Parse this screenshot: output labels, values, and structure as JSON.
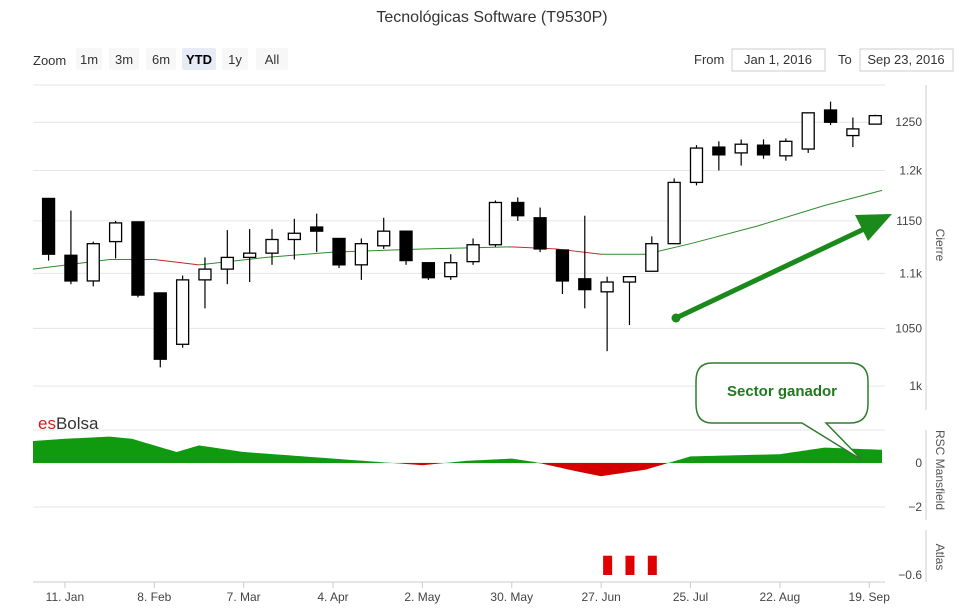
{
  "title": "Tecnológicas Software (T9530P)",
  "zoom": {
    "label": "Zoom",
    "buttons": [
      "1m",
      "3m",
      "6m",
      "YTD",
      "1y",
      "All"
    ],
    "selected": "YTD"
  },
  "range": {
    "from_label": "From",
    "from_value": "Jan 1, 2016",
    "to_label": "To",
    "to_value": "Sep 23, 2016"
  },
  "watermark": {
    "prefix": "es",
    "suffix": "Bolsa"
  },
  "annotation": {
    "text": "Sector ganador"
  },
  "colors": {
    "up_fill": "#ffffff",
    "down_fill": "#000000",
    "ma_up": "#2e8b2e",
    "ma_down": "#cc2222",
    "rsc_pos": "#0f9a0f",
    "rsc_neg": "#d40000",
    "arrow": "#1a8a1a",
    "atlas": "#e00000"
  },
  "chart_data": [
    {
      "type": "candlestick",
      "title": "Tecnológicas Software (T9530P)",
      "ylabel": "Cierre",
      "y_scale": "log",
      "ylim": [
        980,
        1290
      ],
      "y_ticks": [
        1000,
        1050,
        1100,
        1150,
        1200,
        1250
      ],
      "y_tick_labels": [
        "1k",
        "1050",
        "1.1k",
        "1150",
        "1.2k",
        "1250"
      ],
      "x_range": [
        "2016-01-01",
        "2016-09-23"
      ],
      "x_ticks": [
        "2016-01-11",
        "2016-02-08",
        "2016-03-07",
        "2016-04-04",
        "2016-05-02",
        "2016-05-30",
        "2016-06-27",
        "2016-07-25",
        "2016-08-22",
        "2016-09-19"
      ],
      "x_tick_labels": [
        "11. Jan",
        "8. Feb",
        "7. Mar",
        "4. Apr",
        "2. May",
        "30. May",
        "27. Jun",
        "25. Jul",
        "22. Aug",
        "19. Sep"
      ],
      "candles": [
        {
          "date": "2016-01-04",
          "open": 1172,
          "high": 1172,
          "low": 1112,
          "close": 1118
        },
        {
          "date": "2016-01-11",
          "open": 1117,
          "high": 1160,
          "low": 1090,
          "close": 1093
        },
        {
          "date": "2016-01-18",
          "open": 1093,
          "high": 1130,
          "low": 1088,
          "close": 1128
        },
        {
          "date": "2016-01-25",
          "open": 1130,
          "high": 1150,
          "low": 1114,
          "close": 1148
        },
        {
          "date": "2016-02-01",
          "open": 1149,
          "high": 1149,
          "low": 1078,
          "close": 1080
        },
        {
          "date": "2016-02-08",
          "open": 1082,
          "high": 1082,
          "low": 1016,
          "close": 1023
        },
        {
          "date": "2016-02-15",
          "open": 1036,
          "high": 1098,
          "low": 1033,
          "close": 1094
        },
        {
          "date": "2016-02-22",
          "open": 1094,
          "high": 1115,
          "low": 1068,
          "close": 1104
        },
        {
          "date": "2016-02-29",
          "open": 1104,
          "high": 1141,
          "low": 1090,
          "close": 1115
        },
        {
          "date": "2016-03-07",
          "open": 1115,
          "high": 1142,
          "low": 1092,
          "close": 1119
        },
        {
          "date": "2016-03-14",
          "open": 1119,
          "high": 1142,
          "low": 1108,
          "close": 1132
        },
        {
          "date": "2016-03-21",
          "open": 1132,
          "high": 1152,
          "low": 1113,
          "close": 1138
        },
        {
          "date": "2016-03-28",
          "open": 1144,
          "high": 1157,
          "low": 1120,
          "close": 1140
        },
        {
          "date": "2016-04-04",
          "open": 1133,
          "high": 1133,
          "low": 1105,
          "close": 1108
        },
        {
          "date": "2016-04-11",
          "open": 1108,
          "high": 1133,
          "low": 1094,
          "close": 1128
        },
        {
          "date": "2016-04-18",
          "open": 1126,
          "high": 1153,
          "low": 1123,
          "close": 1140
        },
        {
          "date": "2016-04-25",
          "open": 1140,
          "high": 1140,
          "low": 1108,
          "close": 1112
        },
        {
          "date": "2016-05-02",
          "open": 1110,
          "high": 1110,
          "low": 1094,
          "close": 1096
        },
        {
          "date": "2016-05-09",
          "open": 1097,
          "high": 1118,
          "low": 1094,
          "close": 1110
        },
        {
          "date": "2016-05-16",
          "open": 1111,
          "high": 1133,
          "low": 1108,
          "close": 1127
        },
        {
          "date": "2016-05-23",
          "open": 1127,
          "high": 1170,
          "low": 1125,
          "close": 1168
        },
        {
          "date": "2016-05-30",
          "open": 1168,
          "high": 1173,
          "low": 1150,
          "close": 1155
        },
        {
          "date": "2016-06-06",
          "open": 1153,
          "high": 1163,
          "low": 1120,
          "close": 1123
        },
        {
          "date": "2016-06-13",
          "open": 1122,
          "high": 1122,
          "low": 1081,
          "close": 1093
        },
        {
          "date": "2016-06-20",
          "open": 1095,
          "high": 1155,
          "low": 1068,
          "close": 1085
        },
        {
          "date": "2016-06-27",
          "open": 1083,
          "high": 1097,
          "low": 1030,
          "close": 1092
        },
        {
          "date": "2016-07-04",
          "open": 1092,
          "high": 1097,
          "low": 1053,
          "close": 1097
        },
        {
          "date": "2016-07-11",
          "open": 1102,
          "high": 1135,
          "low": 1102,
          "close": 1128
        },
        {
          "date": "2016-07-18",
          "open": 1128,
          "high": 1192,
          "low": 1128,
          "close": 1188
        },
        {
          "date": "2016-07-25",
          "open": 1188,
          "high": 1226,
          "low": 1185,
          "close": 1223
        },
        {
          "date": "2016-08-01",
          "open": 1224,
          "high": 1230,
          "low": 1200,
          "close": 1216
        },
        {
          "date": "2016-08-08",
          "open": 1218,
          "high": 1232,
          "low": 1205,
          "close": 1227
        },
        {
          "date": "2016-08-15",
          "open": 1226,
          "high": 1232,
          "low": 1212,
          "close": 1216
        },
        {
          "date": "2016-08-22",
          "open": 1215,
          "high": 1233,
          "low": 1210,
          "close": 1230
        },
        {
          "date": "2016-08-29",
          "open": 1222,
          "high": 1260,
          "low": 1218,
          "close": 1260
        },
        {
          "date": "2016-09-05",
          "open": 1263,
          "high": 1272,
          "low": 1247,
          "close": 1250
        },
        {
          "date": "2016-09-12",
          "open": 1236,
          "high": 1255,
          "low": 1224,
          "close": 1243
        },
        {
          "date": "2016-09-19",
          "open": 1248,
          "high": 1258,
          "low": 1248,
          "close": 1257
        }
      ],
      "moving_average": [
        {
          "date": "2016-01-01",
          "value": 1104
        },
        {
          "date": "2016-01-25",
          "value": 1113
        },
        {
          "date": "2016-02-08",
          "value": 1113
        },
        {
          "date": "2016-02-22",
          "value": 1108
        },
        {
          "date": "2016-03-14",
          "value": 1115
        },
        {
          "date": "2016-04-04",
          "value": 1120
        },
        {
          "date": "2016-05-02",
          "value": 1123
        },
        {
          "date": "2016-05-30",
          "value": 1125
        },
        {
          "date": "2016-06-13",
          "value": 1123
        },
        {
          "date": "2016-06-27",
          "value": 1118
        },
        {
          "date": "2016-07-11",
          "value": 1118
        },
        {
          "date": "2016-07-25",
          "value": 1128
        },
        {
          "date": "2016-08-15",
          "value": 1145
        },
        {
          "date": "2016-09-05",
          "value": 1165
        },
        {
          "date": "2016-09-23",
          "value": 1180
        }
      ]
    },
    {
      "type": "area",
      "ylabel": "RSC Mansfield",
      "ylim": [
        -3.5,
        1.5
      ],
      "y_ticks": [
        0,
        -2
      ],
      "y_tick_labels": [
        "0",
        "−2"
      ],
      "series": [
        {
          "x": [
            "2016-01-01",
            "2016-01-11",
            "2016-01-25",
            "2016-02-01",
            "2016-02-15",
            "2016-02-22",
            "2016-03-07",
            "2016-04-04",
            "2016-05-02",
            "2016-05-16",
            "2016-05-30",
            "2016-06-06",
            "2016-06-20",
            "2016-06-27",
            "2016-07-11",
            "2016-07-25",
            "2016-08-22",
            "2016-09-05",
            "2016-09-23"
          ],
          "values": [
            1.0,
            1.1,
            1.2,
            1.1,
            0.5,
            0.8,
            0.5,
            0.2,
            -0.1,
            0.1,
            0.2,
            0.05,
            -0.4,
            -0.6,
            -0.3,
            0.3,
            0.4,
            0.7,
            0.6
          ]
        }
      ]
    },
    {
      "type": "bar",
      "ylabel": "Atlas",
      "y_ticks": [
        -0.6
      ],
      "y_tick_labels": [
        "−0.6"
      ],
      "ylim": [
        -0.8,
        0.6
      ],
      "x": [
        "2016-06-27",
        "2016-07-04",
        "2016-07-11"
      ],
      "values": [
        -0.45,
        -0.45,
        -0.45
      ]
    }
  ]
}
